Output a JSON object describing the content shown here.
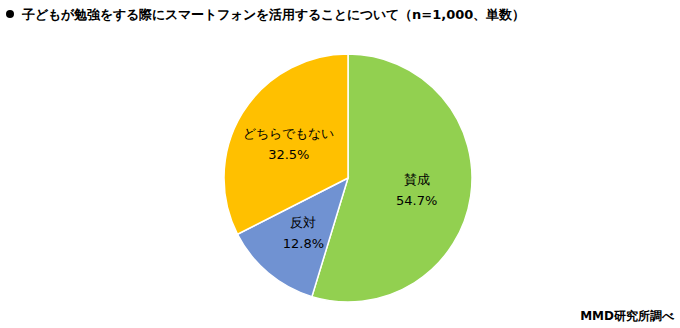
{
  "chart_data": {
    "type": "pie",
    "title": "子どもが勉強をする際にスマートフォンを活用することについて（n=1,000、単数）",
    "categories": [
      "賛成",
      "反対",
      "どちらでもない"
    ],
    "values": [
      54.7,
      12.8,
      32.5
    ],
    "value_labels": [
      "54.7%",
      "12.8%",
      "32.5%"
    ],
    "colors": [
      "#92d050",
      "#7092d2",
      "#ffc000"
    ],
    "data_labels": true,
    "source": "MMD研究所調べ"
  }
}
